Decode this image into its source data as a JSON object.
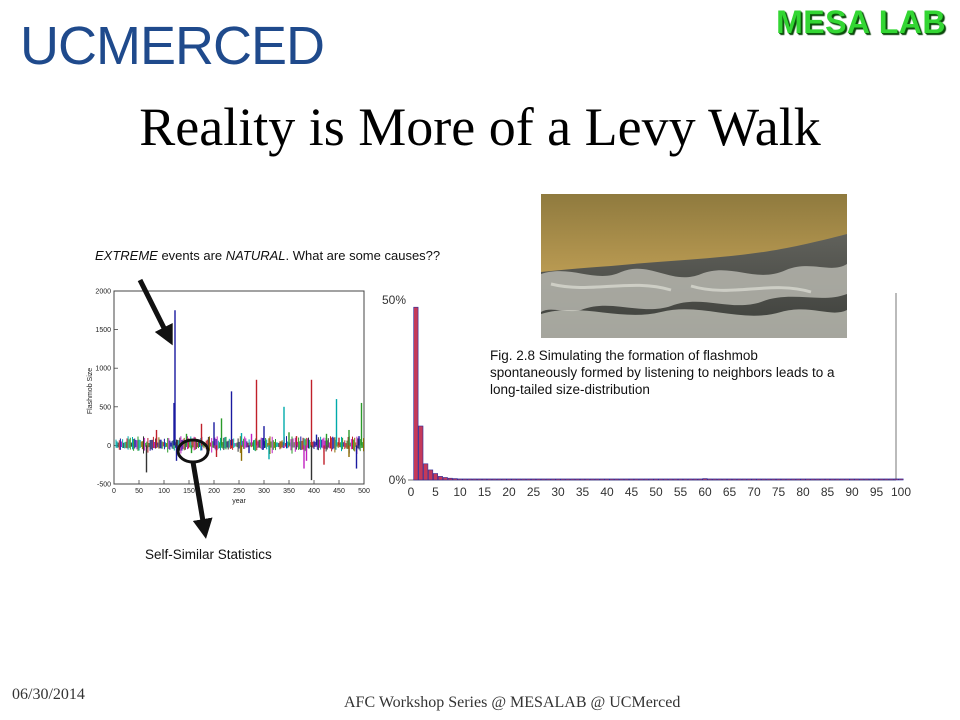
{
  "header": {
    "university_logo_text": "UCMERCED",
    "lab_logo_text": "MESA LAB"
  },
  "slide": {
    "title": "Reality is More of a Levy Walk",
    "extreme_note": {
      "part1": "EXTREME",
      "part2": " events are ",
      "part3": "NATURAL",
      "part4": ".  What are some causes??"
    },
    "self_similar_label": "Self-Similar Statistics",
    "fig_caption": "Fig. 2.8 Simulating the formation of flashmob spontaneously formed by listening to neighbors leads to a long-tailed size-distribution"
  },
  "footer": {
    "date": "06/30/2014",
    "text": "AFC Workshop Series @ MESALAB @ UCMerced"
  },
  "colors": {
    "university_blue": "#1f4a8c",
    "lab_green": "#33d633",
    "hist_bar": "#c43a5a",
    "hist_edge": "#2a2a9a"
  },
  "chart_data": [
    {
      "type": "line",
      "xlabel": "year",
      "ylabel": "Flashmob Size",
      "xlim": [
        0,
        500
      ],
      "ylim": [
        -500,
        2000
      ],
      "x_ticks": [
        "0",
        "50",
        "100",
        "150",
        "200",
        "250",
        "300",
        "350",
        "400",
        "450",
        "500"
      ],
      "y_ticks": [
        "2000",
        "1500",
        "1000",
        "500",
        "0",
        "-500"
      ],
      "series_colors": [
        "#1a1aa0",
        "#c0202a",
        "#2a9a2a",
        "#00aaaa",
        "#c020c0",
        "#8a6a00",
        "#333333"
      ],
      "spikes": [
        {
          "x": 122,
          "y": 1750,
          "color": "#1a1aa0"
        },
        {
          "x": 120,
          "y": 550,
          "color": "#1a1aa0"
        },
        {
          "x": 85,
          "y": 200,
          "color": "#c0202a"
        },
        {
          "x": 145,
          "y": 150,
          "color": "#2a9a2a"
        },
        {
          "x": 175,
          "y": 280,
          "color": "#c0202a"
        },
        {
          "x": 200,
          "y": 300,
          "color": "#1a1aa0"
        },
        {
          "x": 215,
          "y": 350,
          "color": "#2a9a2a"
        },
        {
          "x": 235,
          "y": 700,
          "color": "#1a1aa0"
        },
        {
          "x": 255,
          "y": 160,
          "color": "#00aaaa"
        },
        {
          "x": 275,
          "y": 150,
          "color": "#c020c0"
        },
        {
          "x": 285,
          "y": 850,
          "color": "#c0202a"
        },
        {
          "x": 300,
          "y": 250,
          "color": "#1a1aa0"
        },
        {
          "x": 340,
          "y": 500,
          "color": "#00aaaa"
        },
        {
          "x": 350,
          "y": 170,
          "color": "#2a9a2a"
        },
        {
          "x": 365,
          "y": 120,
          "color": "#c0202a"
        },
        {
          "x": 395,
          "y": 850,
          "color": "#c0202a"
        },
        {
          "x": 405,
          "y": 140,
          "color": "#1a1aa0"
        },
        {
          "x": 425,
          "y": 150,
          "color": "#2a9a2a"
        },
        {
          "x": 445,
          "y": 600,
          "color": "#00aaaa"
        },
        {
          "x": 450,
          "y": 100,
          "color": "#c0202a"
        },
        {
          "x": 470,
          "y": 200,
          "color": "#2a9a2a"
        },
        {
          "x": 490,
          "y": 120,
          "color": "#1a1aa0"
        },
        {
          "x": 495,
          "y": 550,
          "color": "#2a9a2a"
        },
        {
          "x": 65,
          "y": -350,
          "color": "#333333"
        },
        {
          "x": 125,
          "y": -200,
          "color": "#1a1aa0"
        },
        {
          "x": 155,
          "y": -100,
          "color": "#2a9a2a"
        },
        {
          "x": 205,
          "y": -150,
          "color": "#c0202a"
        },
        {
          "x": 255,
          "y": -200,
          "color": "#8a6a00"
        },
        {
          "x": 270,
          "y": -100,
          "color": "#1a1aa0"
        },
        {
          "x": 310,
          "y": -180,
          "color": "#00aaaa"
        },
        {
          "x": 380,
          "y": -300,
          "color": "#c020c0"
        },
        {
          "x": 385,
          "y": -200,
          "color": "#c020c0"
        },
        {
          "x": 395,
          "y": -450,
          "color": "#333333"
        },
        {
          "x": 420,
          "y": -250,
          "color": "#c0202a"
        },
        {
          "x": 470,
          "y": -150,
          "color": "#8a6a00"
        },
        {
          "x": 485,
          "y": -300,
          "color": "#1a1aa0"
        }
      ]
    },
    {
      "type": "bar",
      "xlim": [
        0,
        100
      ],
      "x_ticks": [
        "0",
        "5",
        "10",
        "15",
        "20",
        "25",
        "30",
        "35",
        "40",
        "45",
        "50",
        "55",
        "60",
        "65",
        "70",
        "75",
        "80",
        "85",
        "90",
        "95",
        "100"
      ],
      "y_ticks": [
        "50%",
        "0%"
      ],
      "x": [
        1,
        2,
        3,
        4,
        5,
        6,
        7,
        8,
        9,
        10,
        15,
        20,
        25,
        30,
        35,
        40,
        45,
        50,
        55,
        60,
        65,
        70,
        75,
        80,
        85,
        90,
        95,
        100
      ],
      "values": [
        48,
        15,
        4.5,
        2.8,
        1.8,
        1.0,
        0.7,
        0.5,
        0.4,
        0.3,
        0.3,
        0.3,
        0.3,
        0.3,
        0.3,
        0.3,
        0.3,
        0.3,
        0.3,
        0.4,
        0.3,
        0.3,
        0.3,
        0.3,
        0.3,
        0.3,
        0.3,
        0.3
      ],
      "ylim": [
        0,
        50
      ]
    }
  ]
}
